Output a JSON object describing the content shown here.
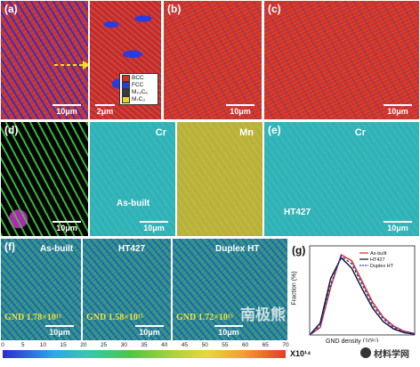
{
  "figure": {
    "panel_labels": {
      "a": "(a)",
      "b": "(b)",
      "c": "(c)",
      "d": "(d)",
      "e": "(e)",
      "f": "(f)",
      "g": "(g)"
    },
    "scale_bars": {
      "a_left": "10μm",
      "a_right": "2μm",
      "b": "10μm",
      "c": "10μm",
      "d": "10μm",
      "cr_d": "10μm",
      "e": "10μm",
      "f1": "10μm",
      "f2": "10μm",
      "f3": "10μm"
    },
    "phase_legend": [
      {
        "label": "BCC",
        "color": "#d8301f"
      },
      {
        "label": "FCC",
        "color": "#2a3ce0"
      },
      {
        "label": "M₂₃C₆",
        "color": "#3a3a3a"
      },
      {
        "label": "M₇C₃",
        "color": "#e6d22a"
      }
    ],
    "elements": {
      "cr_d": "Cr",
      "mn_d": "Mn",
      "cr_e": "Cr"
    },
    "conditions": {
      "d": "As-built",
      "e": "HT427",
      "f1": "As-built",
      "f2": "HT427",
      "f3": "Duplex HT"
    },
    "gnd_values": {
      "f1": "GND 1.78×10¹⁵",
      "f2": "GND 1.58×10¹⁵",
      "f3": "GND 1.72×10¹⁵"
    },
    "colorbar": {
      "ticks": [
        "0",
        "5",
        "10",
        "15",
        "20",
        "25",
        "30",
        "35",
        "40",
        "45",
        "50",
        "55",
        "60",
        "65",
        "70"
      ],
      "unit": "X10¹⁴"
    },
    "watermark": "南极熊",
    "logo_text": "材料学网"
  },
  "chart_data": {
    "type": "line",
    "xlabel": "GND density (10¹⁵)",
    "ylabel": "Fraction (%)",
    "x": [
      0,
      0.5,
      1.0,
      1.5,
      2.0,
      2.5,
      3.0,
      3.5,
      4.0,
      4.5,
      5.0
    ],
    "series": [
      {
        "name": "As-built",
        "color": "#d9281e",
        "values": [
          0,
          0.5,
          3.2,
          5.4,
          5.0,
          3.6,
          2.2,
          1.2,
          0.6,
          0.25,
          0.1
        ]
      },
      {
        "name": "HT427",
        "color": "#111111",
        "values": [
          0,
          0.8,
          3.8,
          5.2,
          4.5,
          3.1,
          1.8,
          0.9,
          0.4,
          0.15,
          0.05
        ]
      },
      {
        "name": "Duplex HT",
        "color": "#2a3ce0",
        "values": [
          0,
          0.6,
          3.4,
          5.3,
          4.8,
          3.4,
          2.0,
          1.1,
          0.5,
          0.2,
          0.08
        ]
      }
    ],
    "ylim": [
      0,
      6
    ],
    "xlim": [
      0,
      5
    ]
  }
}
